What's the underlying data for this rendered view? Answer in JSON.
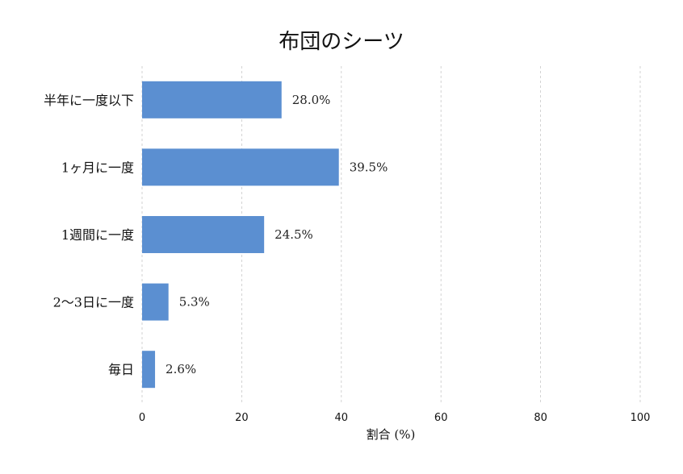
{
  "chart_data": {
    "type": "bar",
    "orientation": "horizontal",
    "title": "布団のシーツ",
    "xlabel": "割合 (%)",
    "ylabel": "",
    "xlim": [
      0,
      100
    ],
    "x_ticks": [
      "0",
      "20",
      "40",
      "60",
      "80",
      "100"
    ],
    "categories": [
      "半年に一度以下",
      "1ヶ月に一度",
      "1週間に一度",
      "2〜3日に一度",
      "毎日"
    ],
    "values": [
      28.0,
      39.5,
      24.5,
      5.3,
      2.6
    ],
    "value_labels": [
      "28.0%",
      "39.5%",
      "24.5%",
      "5.3%",
      "2.6%"
    ],
    "grid": "vertical-dashed",
    "colors": {
      "bar": "#5b8fd1",
      "grid": "#c8c8c8"
    }
  }
}
